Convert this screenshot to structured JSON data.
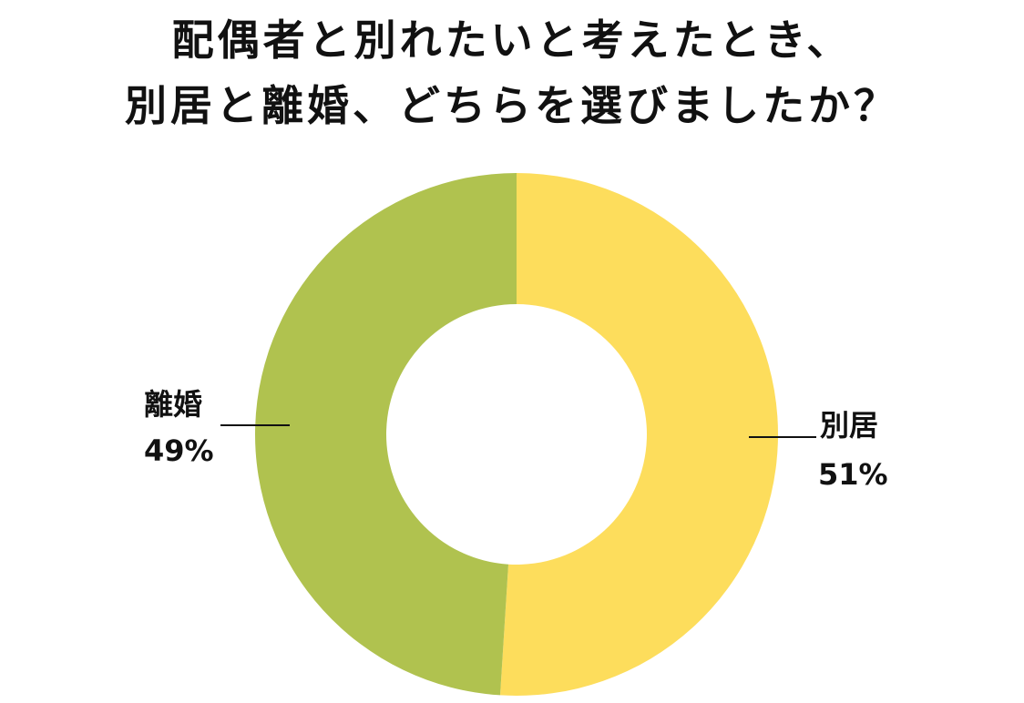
{
  "title": {
    "line1": "配偶者と別れたいと考えたとき、",
    "line2": "別居と離婚、どちらを選びましたか？"
  },
  "chart_data": {
    "type": "pie",
    "variant": "donut",
    "title": "配偶者と別れたいと考えたとき、別居と離婚、どちらを選びましたか？",
    "categories": [
      "別居",
      "離婚"
    ],
    "values": [
      51,
      49
    ],
    "value_labels": [
      "51%",
      "49%"
    ],
    "colors": [
      "#FDDD5C",
      "#B0C24F"
    ],
    "start": "12 o'clock",
    "direction": "clockwise",
    "legend": "none (labels beside slices with leader lines)"
  }
}
